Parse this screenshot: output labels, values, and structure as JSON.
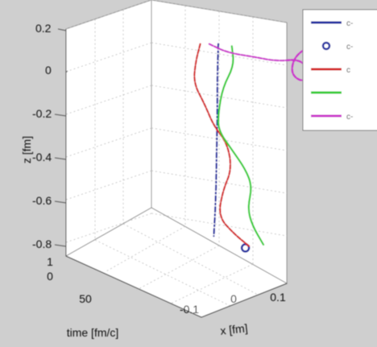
{
  "chart_data": {
    "type": "line",
    "projection": "3d",
    "title": "",
    "xlabel": "x [fm]",
    "ylabel": "time [fm/c]",
    "zlabel": "z [fm]",
    "z_tick_labels": [
      "0.2",
      "0",
      "-0.2",
      "-0.4",
      "-0.6",
      "-0.8"
    ],
    "x_tick_labels": [
      "-0.1",
      "0",
      "0.1"
    ],
    "time_tick_labels": [
      "1",
      "0",
      "50"
    ],
    "grid": true,
    "legend_position": "top-right",
    "legend_labels": [
      "c-",
      "c-",
      "c",
      "",
      "c-"
    ],
    "series": [
      {
        "style": "dash-dot line",
        "color": "#1f2aa0",
        "points": [
          [
            0.0,
            0.0,
            0.02
          ],
          [
            -0.002,
            0.0,
            -0.12
          ],
          [
            -0.002,
            0.0,
            -0.26
          ],
          [
            -0.003,
            0.0,
            -0.4
          ],
          [
            -0.004,
            0.0,
            -0.52
          ],
          [
            -0.005,
            0.0,
            -0.64
          ],
          [
            -0.007,
            0.0,
            -0.76
          ],
          [
            -0.01,
            0.0,
            -0.87
          ]
        ]
      },
      {
        "style": "circle marker",
        "color": "#1f2aa0",
        "points": [
          [
            0.06,
            0.0,
            -0.925
          ]
        ]
      },
      {
        "style": "dashed line",
        "color": "#d42020",
        "points": [
          [
            -0.04,
            0.0,
            0.02
          ],
          [
            -0.05,
            0.0,
            -0.06
          ],
          [
            -0.055,
            0.0,
            -0.16
          ],
          [
            -0.03,
            0.0,
            -0.26
          ],
          [
            -0.01,
            0.0,
            -0.36
          ],
          [
            0.02,
            0.0,
            -0.44
          ],
          [
            0.03,
            0.0,
            -0.56
          ],
          [
            0.01,
            0.0,
            -0.66
          ],
          [
            0.0,
            0.0,
            -0.78
          ],
          [
            0.035,
            0.0,
            -0.86
          ],
          [
            0.07,
            0.0,
            -0.92
          ]
        ]
      },
      {
        "style": "solid line",
        "color": "#33cc33",
        "points": [
          [
            0.03,
            0.0,
            0.01
          ],
          [
            0.035,
            0.0,
            -0.08
          ],
          [
            0.01,
            0.0,
            -0.18
          ],
          [
            0.0,
            0.0,
            -0.3
          ],
          [
            0.0,
            0.0,
            -0.38
          ],
          [
            0.03,
            0.0,
            -0.47
          ],
          [
            0.06,
            0.0,
            -0.56
          ],
          [
            0.075,
            0.0,
            -0.64
          ],
          [
            0.065,
            0.0,
            -0.74
          ],
          [
            0.075,
            0.0,
            -0.82
          ],
          [
            0.1,
            0.0,
            -0.91
          ]
        ]
      },
      {
        "style": "dashed line",
        "color": "#cc33cc",
        "points": [
          [
            -0.02,
            0.0,
            0.02
          ],
          [
            0.02,
            0.0,
            -0.02
          ],
          [
            0.08,
            0.0,
            -0.04
          ],
          [
            0.13,
            0.0,
            -0.06
          ],
          [
            0.18,
            0.0,
            -0.05
          ],
          [
            0.2,
            0.0,
            -0.1
          ],
          [
            0.19,
            0.0,
            -0.16
          ],
          [
            0.16,
            0.0,
            -0.12
          ],
          [
            0.17,
            0.0,
            -0.03
          ],
          [
            0.215,
            0.0,
            0.02
          ],
          [
            0.23,
            0.0,
            -0.02
          ]
        ]
      }
    ]
  }
}
